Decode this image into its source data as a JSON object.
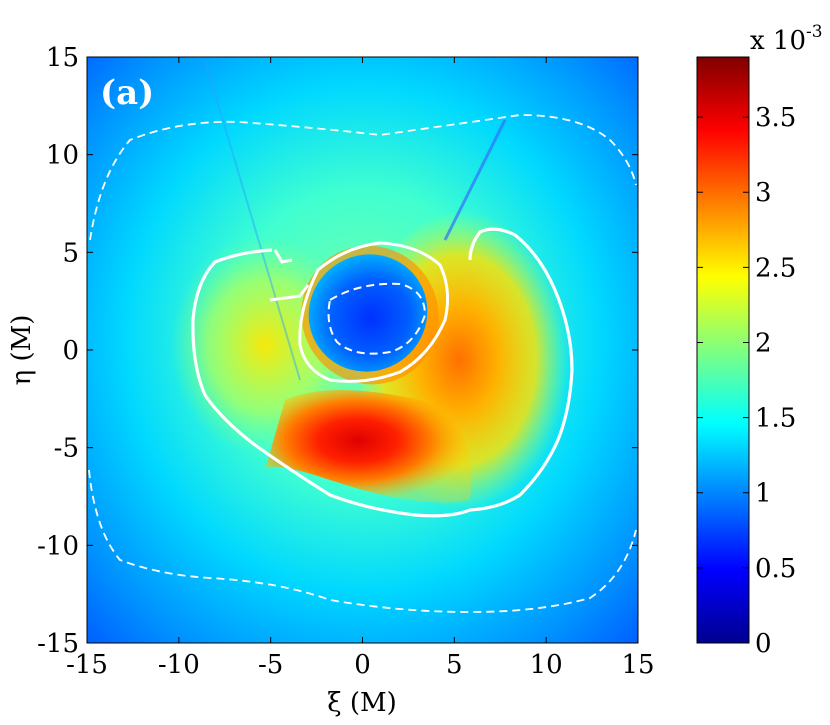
{
  "chart_data": {
    "type": "heatmap",
    "panel_label": "(a)",
    "xlabel": "ξ (M)",
    "ylabel": "η (M)",
    "xlim": [
      -15,
      15
    ],
    "ylim": [
      -15,
      15
    ],
    "xticks": [
      -15,
      -10,
      -5,
      0,
      5,
      10,
      15
    ],
    "yticks": [
      -15,
      -10,
      -5,
      0,
      5,
      10,
      15
    ],
    "xtick_labels": [
      "-15",
      "-10",
      "-5",
      "0",
      "5",
      "10",
      "15"
    ],
    "ytick_labels": [
      "-15",
      "-10",
      "-5",
      "0",
      "5",
      "10",
      "15"
    ],
    "colormap": "jet",
    "colorbar": {
      "lim": [
        0,
        0.0039
      ],
      "ticks": [
        0,
        0.5,
        1,
        1.5,
        2,
        2.5,
        3,
        3.5
      ],
      "tick_labels": [
        "0",
        "0.5",
        "1",
        "1.5",
        "2",
        "2.5",
        "3",
        "3.5"
      ],
      "multiplier_base": "x 10",
      "multiplier_exponent": "-3"
    },
    "contours": [
      {
        "style": "solid",
        "color": "#ffffff",
        "note": "outer closed contour"
      },
      {
        "style": "solid",
        "color": "#ffffff",
        "note": "inner ring around shadow"
      },
      {
        "style": "dashed",
        "color": "#ffffff",
        "note": "inner shadow contour"
      },
      {
        "style": "dashed",
        "color": "#ffffff",
        "note": "upper outer dashed contour"
      },
      {
        "style": "dashed",
        "color": "#ffffff",
        "note": "lower outer dashed contour"
      }
    ]
  }
}
